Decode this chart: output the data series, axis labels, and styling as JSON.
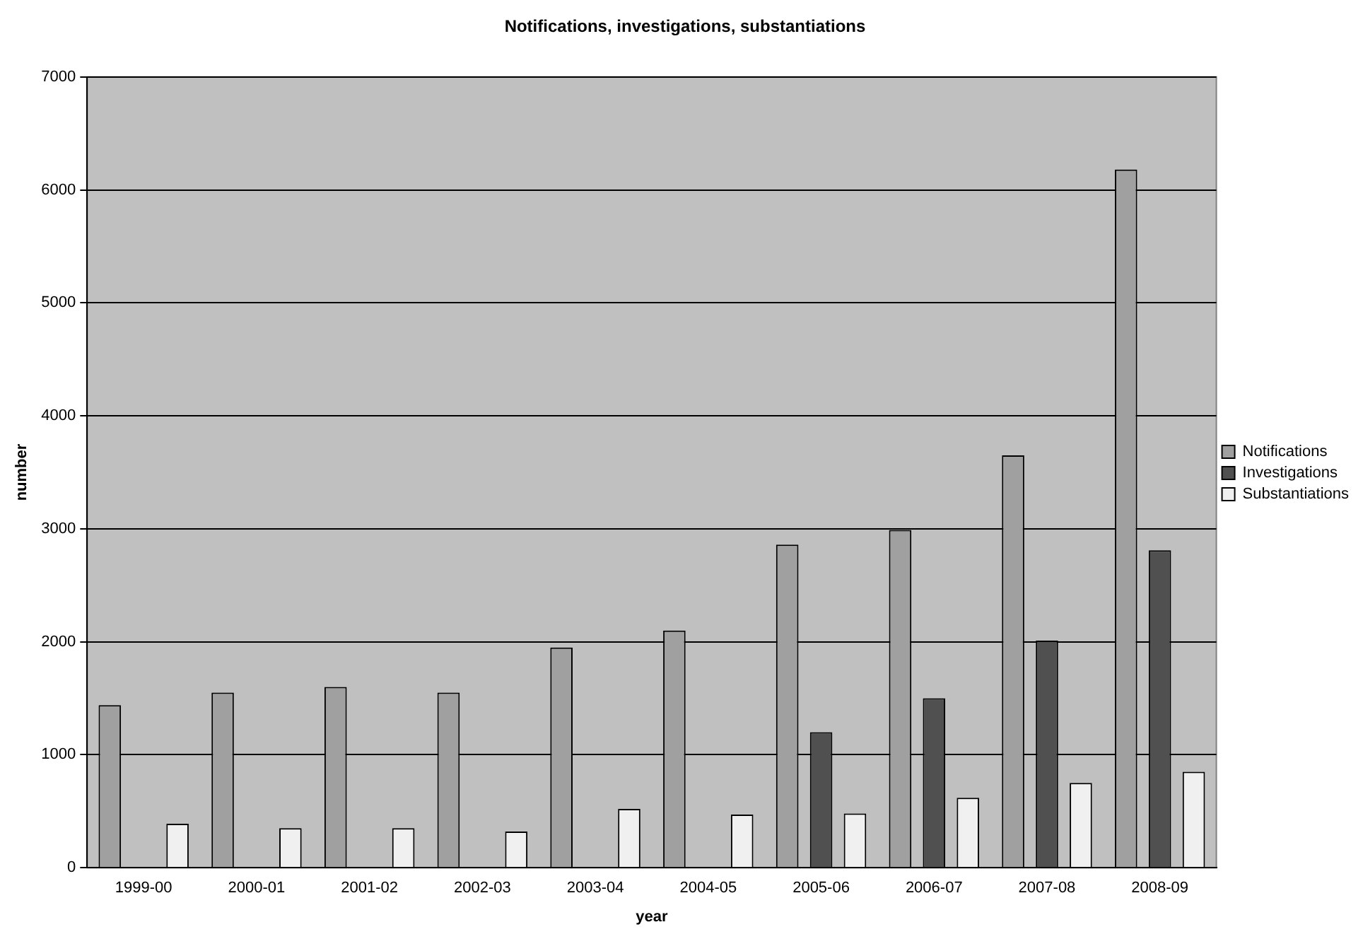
{
  "chart_data": {
    "type": "bar",
    "title": "Notifications, investigations, substantiations",
    "xlabel": "year",
    "ylabel": "number",
    "categories": [
      "1999-00",
      "2000-01",
      "2001-02",
      "2002-03",
      "2003-04",
      "2004-05",
      "2005-06",
      "2006-07",
      "2007-08",
      "2008-09"
    ],
    "series": [
      {
        "name": "Notifications",
        "color": "#a0a0a0",
        "values": [
          1440,
          1550,
          1600,
          1550,
          1950,
          2100,
          2860,
          2990,
          3650,
          6180
        ]
      },
      {
        "name": "Investigations",
        "color": "#505050",
        "values": [
          null,
          null,
          null,
          null,
          null,
          null,
          1200,
          1500,
          2010,
          2810
        ]
      },
      {
        "name": "Substantiations",
        "color": "#f0f0f0",
        "values": [
          390,
          350,
          350,
          320,
          520,
          470,
          480,
          620,
          750,
          850
        ]
      }
    ],
    "ylim": [
      0,
      7000
    ],
    "yticks": [
      0,
      1000,
      2000,
      3000,
      4000,
      5000,
      6000,
      7000
    ],
    "grid": "y",
    "legend": "right"
  }
}
